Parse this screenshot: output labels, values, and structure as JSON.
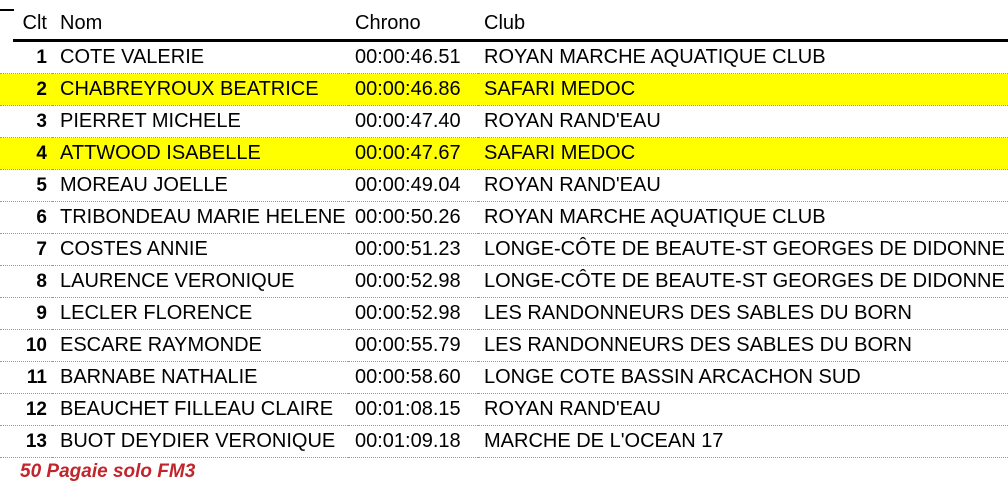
{
  "page": {
    "next_section_title": "50 Pagaie solo FM3",
    "colors": {
      "highlight": "#FFFF00",
      "section_title_red": "#C0262C",
      "row_separator": "#9A9A9A",
      "header_rule": "#000000"
    }
  },
  "table": {
    "headers": {
      "rank": "Clt",
      "name": "Nom",
      "chrono": "Chrono",
      "club": "Club"
    },
    "rows": [
      {
        "rank": "1",
        "name": "COTE VALERIE",
        "chrono": "00:00:46.51",
        "club": "ROYAN MARCHE AQUATIQUE CLUB",
        "highlighted": false
      },
      {
        "rank": "2",
        "name": "CHABREYROUX BEATRICE",
        "chrono": "00:00:46.86",
        "club": "SAFARI MEDOC",
        "highlighted": true
      },
      {
        "rank": "3",
        "name": "PIERRET MICHELE",
        "chrono": "00:00:47.40",
        "club": "ROYAN RAND'EAU",
        "highlighted": false
      },
      {
        "rank": "4",
        "name": "ATTWOOD ISABELLE",
        "chrono": "00:00:47.67",
        "club": "SAFARI MEDOC",
        "highlighted": true
      },
      {
        "rank": "5",
        "name": "MOREAU JOELLE",
        "chrono": "00:00:49.04",
        "club": "ROYAN RAND'EAU",
        "highlighted": false
      },
      {
        "rank": "6",
        "name": "TRIBONDEAU MARIE HELENE",
        "chrono": "00:00:50.26",
        "club": "ROYAN MARCHE AQUATIQUE CLUB",
        "highlighted": false
      },
      {
        "rank": "7",
        "name": "COSTES ANNIE",
        "chrono": "00:00:51.23",
        "club": "LONGE-CÔTE DE BEAUTE-ST GEORGES DE DIDONNE",
        "highlighted": false
      },
      {
        "rank": "8",
        "name": "LAURENCE VERONIQUE",
        "chrono": "00:00:52.98",
        "club": "LONGE-CÔTE DE BEAUTE-ST GEORGES DE DIDONNE",
        "highlighted": false
      },
      {
        "rank": "9",
        "name": "LECLER FLORENCE",
        "chrono": "00:00:52.98",
        "club": "LES RANDONNEURS DES SABLES DU BORN",
        "highlighted": false
      },
      {
        "rank": "10",
        "name": "ESCARE RAYMONDE",
        "chrono": "00:00:55.79",
        "club": "LES RANDONNEURS DES SABLES DU BORN",
        "highlighted": false
      },
      {
        "rank": "11",
        "name": "BARNABE NATHALIE",
        "chrono": "00:00:58.60",
        "club": "LONGE COTE BASSIN ARCACHON SUD",
        "highlighted": false
      },
      {
        "rank": "12",
        "name": "BEAUCHET FILLEAU CLAIRE",
        "chrono": "00:01:08.15",
        "club": "ROYAN RAND'EAU",
        "highlighted": false
      },
      {
        "rank": "13",
        "name": "BUOT DEYDIER VERONIQUE",
        "chrono": "00:01:09.18",
        "club": "MARCHE DE L'OCEAN 17",
        "highlighted": false
      }
    ]
  }
}
